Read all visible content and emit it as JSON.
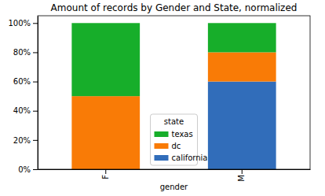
{
  "chart_data": {
    "type": "bar",
    "title": "Amount of records by Gender and State, normalized",
    "x_label": "gender",
    "categories": [
      "F",
      "M"
    ],
    "stacked": true,
    "series": [
      {
        "name": "california",
        "color": "#316dba",
        "values": [
          0,
          60
        ]
      },
      {
        "name": "dc",
        "color": "#f97b06",
        "values": [
          50,
          20
        ]
      },
      {
        "name": "texas",
        "color": "#17ae2a",
        "values": [
          50,
          20
        ]
      }
    ],
    "legend_title": "state",
    "legend": "bottom",
    "ylim": [
      0,
      105
    ],
    "yticks": [
      {
        "value": 0,
        "label": "0%"
      },
      {
        "value": 20,
        "label": "20%"
      },
      {
        "value": 40,
        "label": "40%"
      },
      {
        "value": 60,
        "label": "60%"
      },
      {
        "value": 80,
        "label": "80%"
      },
      {
        "value": 100,
        "label": "100%"
      }
    ]
  }
}
